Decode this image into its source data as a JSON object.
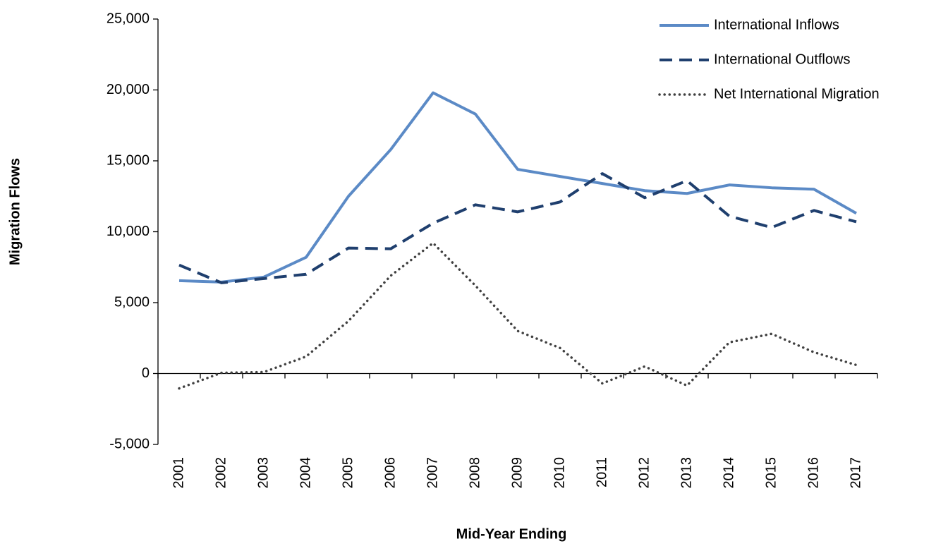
{
  "chart_data": {
    "type": "line",
    "y_axis_label": "Migration Flows",
    "x_axis_label": "Mid-Year Ending",
    "categories": [
      "2001",
      "2002",
      "2003",
      "2004",
      "2005",
      "2006",
      "2007",
      "2008",
      "2009",
      "2010",
      "2011",
      "2012",
      "2013",
      "2014",
      "2015",
      "2016",
      "2017"
    ],
    "series": [
      {
        "name": "International Inflows",
        "color": "#5b8ac6",
        "style": "solid",
        "values": [
          6550,
          6450,
          6800,
          8200,
          12500,
          15800,
          19800,
          18300,
          14400,
          13900,
          13400,
          12900,
          12700,
          13300,
          13100,
          13000,
          11300
        ]
      },
      {
        "name": "International Outflows",
        "color": "#1f3f6e",
        "style": "dashed",
        "values": [
          7650,
          6400,
          6700,
          7000,
          8850,
          8800,
          10600,
          11900,
          11400,
          12100,
          14100,
          12400,
          13600,
          11100,
          10300,
          11500,
          10700
        ]
      },
      {
        "name": "Net International Migration",
        "color": "#404040",
        "style": "dotted",
        "values": [
          -1050,
          50,
          100,
          1200,
          3700,
          6900,
          9200,
          6200,
          3000,
          1800,
          -700,
          500,
          -850,
          2200,
          2800,
          1500,
          600
        ]
      }
    ],
    "ylim": [
      -5000,
      25000
    ],
    "yticks": [
      {
        "value": -5000,
        "label": "-5,000"
      },
      0,
      {
        "value": 5000,
        "label": "5,000"
      },
      {
        "value": 10000,
        "label": "10,000"
      },
      {
        "value": 15000,
        "label": "15,000"
      },
      {
        "value": 20000,
        "label": "20,000"
      },
      {
        "value": 25000,
        "label": "25,000"
      }
    ],
    "grid": false,
    "legend": "top-right"
  }
}
